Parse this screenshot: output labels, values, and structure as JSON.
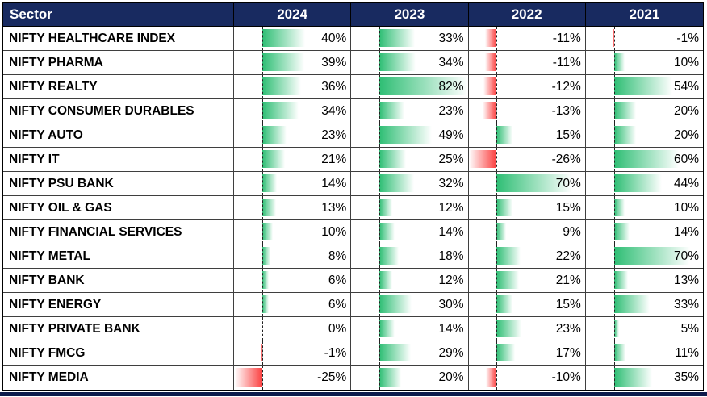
{
  "colors": {
    "header_bg": "#182a60",
    "header_text": "#ffffff",
    "positive_bar": "#2ebe74",
    "negative_bar": "#fb4040",
    "grid_line": "#3f3f3f",
    "outer_border": "#000000",
    "bottom_band": "#0d1b4b",
    "axis_line": "#222222",
    "cell_text": "#000000"
  },
  "chart_data": {
    "type": "table",
    "columns": [
      "Sector",
      "2024",
      "2023",
      "2022",
      "2021"
    ],
    "categories": [
      "NIFTY HEALTHCARE INDEX",
      "NIFTY PHARMA",
      "NIFTY REALTY",
      "NIFTY CONSUMER DURABLES",
      "NIFTY AUTO",
      "NIFTY IT",
      "NIFTY PSU BANK",
      "NIFTY OIL & GAS",
      "NIFTY FINANCIAL SERVICES",
      "NIFTY METAL",
      "NIFTY BANK",
      "NIFTY ENERGY",
      "NIFTY PRIVATE BANK",
      "NIFTY FMCG",
      "NIFTY MEDIA"
    ],
    "series": [
      {
        "name": "2024",
        "values": [
          40,
          39,
          36,
          34,
          23,
          21,
          14,
          13,
          10,
          8,
          6,
          6,
          0,
          -1,
          -25
        ]
      },
      {
        "name": "2023",
        "values": [
          33,
          34,
          82,
          23,
          49,
          25,
          32,
          12,
          14,
          18,
          12,
          30,
          14,
          29,
          20
        ]
      },
      {
        "name": "2022",
        "values": [
          -11,
          -11,
          -12,
          -13,
          15,
          -26,
          70,
          15,
          9,
          22,
          21,
          15,
          23,
          17,
          -10
        ]
      },
      {
        "name": "2021",
        "values": [
          -1,
          10,
          54,
          20,
          20,
          60,
          44,
          10,
          14,
          70,
          13,
          33,
          5,
          11,
          35
        ]
      }
    ],
    "value_suffix": "%",
    "bar_style": "gradient-data-bar",
    "bar_axis": {
      "data_min": -26,
      "data_max": 82
    },
    "legend_position": "none",
    "grid": true
  }
}
